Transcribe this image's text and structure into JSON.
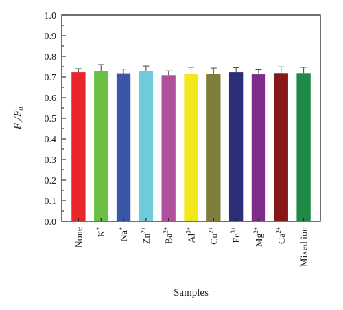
{
  "chart_data": {
    "type": "bar",
    "categories": [
      {
        "base": "None",
        "sup": ""
      },
      {
        "base": "K",
        "sup": "+"
      },
      {
        "base": "Na",
        "sup": "+"
      },
      {
        "base": "Zn",
        "sup": "2+"
      },
      {
        "base": "Ba",
        "sup": "2+"
      },
      {
        "base": "Al",
        "sup": "3+"
      },
      {
        "base": "Cu",
        "sup": "2+"
      },
      {
        "base": "Fe",
        "sup": "3+"
      },
      {
        "base": "Mg",
        "sup": "2+"
      },
      {
        "base": "Ca",
        "sup": "2+"
      },
      {
        "base": "Mixed ion",
        "sup": ""
      }
    ],
    "values": [
      0.723,
      0.73,
      0.718,
      0.728,
      0.709,
      0.717,
      0.715,
      0.723,
      0.713,
      0.719,
      0.719
    ],
    "errors": [
      0.017,
      0.03,
      0.02,
      0.025,
      0.02,
      0.03,
      0.028,
      0.022,
      0.022,
      0.03,
      0.028
    ],
    "colors": [
      "#e8262c",
      "#6cbf45",
      "#3a56a6",
      "#6fcbdc",
      "#b0509c",
      "#f2e81c",
      "#7e7d3a",
      "#2b2f7a",
      "#7e2d8c",
      "#861818",
      "#1e8a45"
    ],
    "xlabel": "Samples",
    "ylabel": {
      "F": "F",
      "num_sub": "2",
      "den_sub": "0"
    },
    "ylim": [
      0.0,
      1.0
    ],
    "yticks": [
      "0.0",
      "0.1",
      "0.2",
      "0.3",
      "0.4",
      "0.5",
      "0.6",
      "0.7",
      "0.8",
      "0.9",
      "1.0"
    ],
    "grid": false,
    "legend": "none"
  }
}
